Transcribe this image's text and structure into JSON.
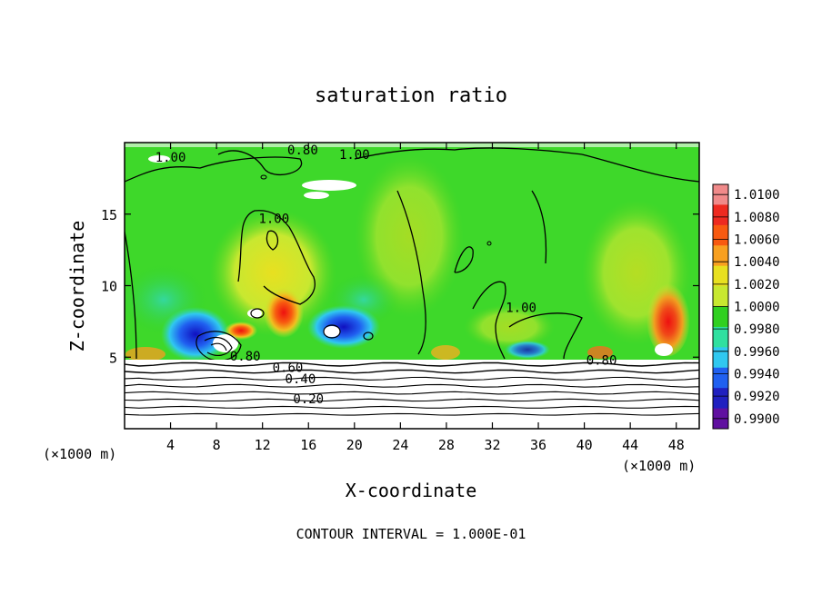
{
  "chart_data": {
    "type": "heatmap",
    "title": "saturation ratio",
    "xlabel": "X-coordinate",
    "ylabel": "Z-coordinate",
    "x_unit_left": "(×1000 m)",
    "x_unit_right": "(×1000 m)",
    "footer": "CONTOUR INTERVAL = 1.000E-01",
    "xlim": [
      0,
      50
    ],
    "ylim": [
      0,
      20
    ],
    "x_ticks": [
      4,
      8,
      12,
      16,
      20,
      24,
      28,
      32,
      36,
      40,
      44,
      48
    ],
    "y_ticks": [
      5,
      10,
      15
    ],
    "colorbar": {
      "min": 0.99,
      "max": 1.01,
      "labels": [
        "1.0100",
        "1.0080",
        "1.0060",
        "1.0040",
        "1.0020",
        "1.0000",
        "0.9980",
        "0.9960",
        "0.9940",
        "0.9920",
        "0.9900"
      ],
      "colors": [
        "#f08a8a",
        "#ee2a20",
        "#f85a10",
        "#f8a020",
        "#e8e020",
        "#c8e830",
        "#30d020",
        "#30e0a0",
        "#30c8f0",
        "#2060f0",
        "#2020c0",
        "#6010a0"
      ]
    },
    "contour_labels": [
      {
        "text": "0.80",
        "x": 15.5,
        "z": 19.3
      },
      {
        "text": "1.00",
        "x": 20.0,
        "z": 19.0
      },
      {
        "text": "1.00",
        "x": 4.0,
        "z": 18.8
      },
      {
        "text": "1.00",
        "x": 13.0,
        "z": 14.5
      },
      {
        "text": "1.00",
        "x": 34.5,
        "z": 8.3
      },
      {
        "text": "0.80",
        "x": 10.5,
        "z": 4.9
      },
      {
        "text": "0.60",
        "x": 14.2,
        "z": 4.1
      },
      {
        "text": "0.40",
        "x": 15.3,
        "z": 3.3
      },
      {
        "text": "0.20",
        "x": 16.0,
        "z": 1.9
      },
      {
        "text": "0.80",
        "x": 41.5,
        "z": 4.6
      }
    ],
    "lower_contours": [
      0.2,
      0.3,
      0.4,
      0.5,
      0.6,
      0.7,
      0.8,
      0.9
    ]
  }
}
